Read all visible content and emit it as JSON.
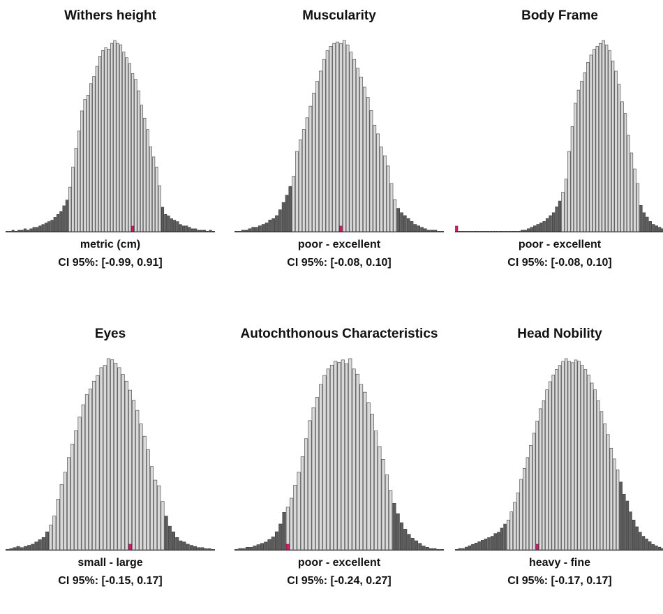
{
  "chart_data": [
    {
      "type": "bar",
      "title": "Withers height",
      "xlabel": "metric (cm)",
      "ci_label": "CI 95%: [-0.99, 0.91]",
      "ci": [
        -0.99,
        0.91
      ],
      "values": [
        0,
        0,
        1,
        0,
        1,
        1,
        2,
        1,
        2,
        3,
        3,
        4,
        5,
        6,
        7,
        8,
        10,
        12,
        14,
        18,
        22,
        31,
        45,
        58,
        70,
        84,
        92,
        95,
        103,
        108,
        115,
        122,
        126,
        128,
        127,
        131,
        133,
        131,
        130,
        125,
        121,
        117,
        110,
        106,
        98,
        88,
        79,
        71,
        59,
        52,
        45,
        32,
        17,
        12,
        11,
        9,
        8,
        7,
        5,
        4,
        4,
        3,
        2,
        2,
        1,
        1,
        1,
        0,
        1,
        0
      ],
      "shaded_left": 21,
      "shaded_right": 51,
      "marker_index": 42
    },
    {
      "type": "bar",
      "title": "Muscularity",
      "xlabel": "poor - excellent",
      "ci_label": "CI 95%: [-0.08, 0.10]",
      "ci": [
        -0.08,
        0.1
      ],
      "values": [
        0,
        0,
        1,
        1,
        2,
        3,
        3,
        4,
        5,
        6,
        8,
        9,
        11,
        15,
        20,
        25,
        31,
        38,
        55,
        63,
        70,
        78,
        86,
        95,
        103,
        110,
        118,
        124,
        127,
        129,
        130,
        129,
        131,
        128,
        123,
        118,
        112,
        106,
        99,
        92,
        83,
        73,
        67,
        58,
        52,
        45,
        33,
        22,
        16,
        13,
        11,
        9,
        7,
        5,
        4,
        3,
        2,
        1,
        1,
        1,
        0,
        0
      ],
      "shaded_left": 17,
      "shaded_right": 47,
      "marker_index": 31
    },
    {
      "type": "bar",
      "title": "Body Frame",
      "xlabel": "poor - excellent",
      "ci_label": "CI 95%: [-0.08, 0.10]",
      "ci": [
        -0.08,
        0.1
      ],
      "values": [
        0,
        0,
        0,
        0,
        0,
        0,
        0,
        0,
        0,
        0,
        0,
        0,
        0,
        0,
        0,
        0,
        0,
        0,
        0,
        0,
        0,
        1,
        1,
        2,
        3,
        4,
        5,
        6,
        7,
        9,
        11,
        13,
        17,
        21,
        27,
        36,
        55,
        72,
        88,
        97,
        103,
        109,
        116,
        121,
        125,
        127,
        129,
        131,
        128,
        124,
        117,
        110,
        101,
        89,
        81,
        66,
        54,
        43,
        33,
        18,
        13,
        10,
        7,
        5,
        4,
        3,
        2
      ],
      "shaded_left": 34,
      "shaded_right": 58,
      "marker_index": 0
    },
    {
      "type": "bar",
      "title": "Eyes",
      "xlabel": "small - large",
      "ci_label": "CI 95%: [-0.15, 0.17]",
      "ci": [
        -0.15,
        0.17
      ],
      "values": [
        0,
        1,
        2,
        3,
        2,
        3,
        4,
        5,
        7,
        9,
        11,
        16,
        22,
        30,
        45,
        58,
        69,
        82,
        94,
        106,
        118,
        129,
        138,
        143,
        150,
        155,
        162,
        164,
        170,
        169,
        166,
        162,
        156,
        150,
        142,
        133,
        124,
        112,
        101,
        89,
        74,
        62,
        57,
        43,
        30,
        21,
        16,
        11,
        8,
        7,
        5,
        4,
        3,
        2,
        2,
        1,
        1,
        0
      ],
      "shaded_left": 12,
      "shaded_right": 43,
      "marker_index": 34
    },
    {
      "type": "bar",
      "title": "Autochthonous Characteristics",
      "xlabel": "poor - excellent",
      "ci_label": "CI 95%: [-0.24, 0.27]",
      "ci": [
        -0.24,
        0.27
      ],
      "values": [
        0,
        1,
        1,
        2,
        2,
        3,
        4,
        5,
        6,
        8,
        10,
        14,
        20,
        29,
        33,
        40,
        50,
        60,
        72,
        86,
        100,
        110,
        118,
        128,
        135,
        140,
        143,
        146,
        145,
        147,
        144,
        148,
        140,
        136,
        128,
        122,
        114,
        105,
        92,
        80,
        70,
        58,
        46,
        36,
        28,
        21,
        16,
        12,
        9,
        7,
        5,
        3,
        2,
        1,
        1,
        0,
        0
      ],
      "shaded_left": 14,
      "shaded_right": 42,
      "marker_index": 14
    },
    {
      "type": "bar",
      "title": "Head Nobility",
      "xlabel": "heavy - fine",
      "ci_label": "CI 95%: [-0.17, 0.17]",
      "ci": [
        -0.17,
        0.17
      ],
      "values": [
        0,
        1,
        1,
        2,
        3,
        4,
        5,
        6,
        7,
        8,
        9,
        10,
        12,
        13,
        16,
        19,
        22,
        28,
        35,
        42,
        52,
        60,
        68,
        77,
        86,
        95,
        104,
        110,
        118,
        124,
        129,
        133,
        136,
        139,
        141,
        139,
        138,
        140,
        139,
        136,
        133,
        129,
        123,
        118,
        110,
        102,
        93,
        85,
        75,
        67,
        59,
        50,
        41,
        36,
        28,
        22,
        17,
        13,
        10,
        8,
        6,
        4,
        3,
        2,
        1
      ],
      "shaded_left": 16,
      "shaded_right": 50,
      "marker_index": 25
    }
  ],
  "colors": {
    "bar_fill": "#d9d9d9",
    "bar_shaded": "#5c5c5c",
    "bar_stroke": "#3a3a3a",
    "marker": "#cc1f6a",
    "baseline": "#222222"
  }
}
